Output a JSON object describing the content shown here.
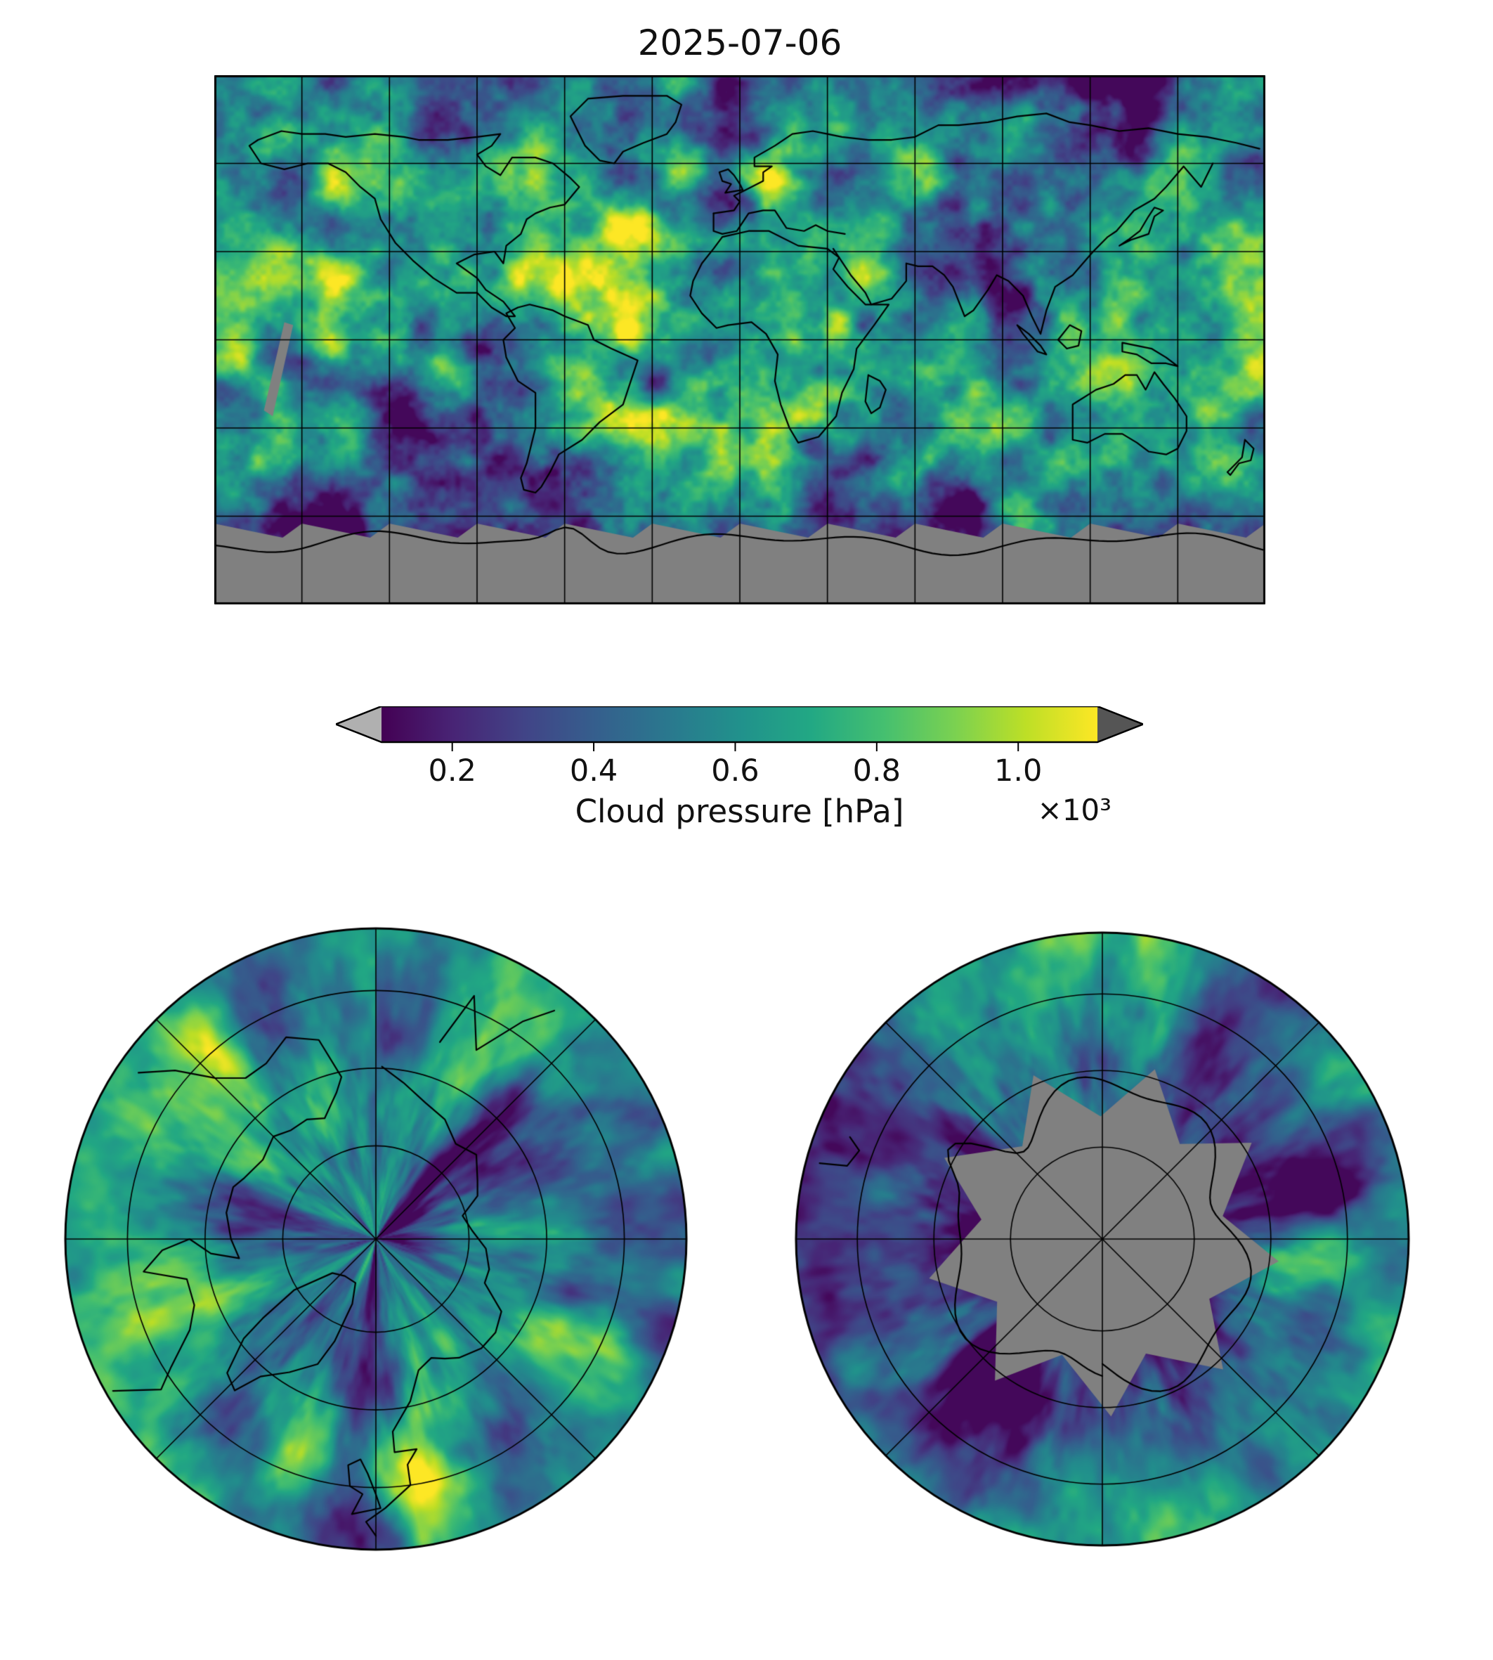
{
  "title": "2025-07-06",
  "colorbar": {
    "label": "Cloud pressure [hPa]",
    "multiplier": "×10³",
    "ticks": [
      "0.2",
      "0.4",
      "0.6",
      "0.8",
      "1.0"
    ],
    "tick_values": [
      0.2,
      0.4,
      0.6,
      0.8,
      1.0
    ],
    "vmin": 0.1,
    "vmax": 1.112,
    "under_color": "#b0b0b0",
    "over_color": "#555555",
    "colormap": "viridis",
    "colormap_stops": [
      "#440154",
      "#482475",
      "#414487",
      "#355f8d",
      "#2a788e",
      "#21918c",
      "#22a884",
      "#44bf70",
      "#7ad151",
      "#bddf26",
      "#fde725"
    ]
  },
  "map": {
    "nodata_color": "#808080",
    "coastline_color": "#000000",
    "gridline_color": "#000000",
    "background": "#ffffff"
  },
  "chart_data": {
    "type": "heatmap",
    "title": "2025-07-06",
    "variable": "Cloud pressure",
    "units": "hPa",
    "scale_factor": "×10³",
    "colormap": "viridis",
    "colorbar_ticks": [
      0.2,
      0.4,
      0.6,
      0.8,
      1.0
    ],
    "value_range": [
      0.1,
      1.112
    ],
    "no_data_color": "#808080",
    "panels": [
      {
        "name": "global-map",
        "projection": "equirectangular",
        "lon_range": [
          -180,
          180
        ],
        "lat_range": [
          -90,
          90
        ],
        "gridline_spacing_deg": 30,
        "no_data_region": "Antarctic band south of ~62°S shown gray with jagged swath edges"
      },
      {
        "name": "north-polar-map",
        "projection": "polar stereographic (North Pole)",
        "lat_limit": 45,
        "graticule": "circles + 45° spokes"
      },
      {
        "name": "south-polar-map",
        "projection": "polar stereographic (South Pole)",
        "lat_limit": -45,
        "graticule": "circles + 45° spokes",
        "no_data_region": "gray pinwheel of missing swaths over Antarctica"
      }
    ],
    "coarse_grid": {
      "description": "Approximate mean cloud pressure (×10³ hPa) on a 30° grid estimated from map colors; null = no data (gray).",
      "lat_centers": [
        75,
        45,
        15,
        -15,
        -45,
        -75
      ],
      "lon_centers": [
        -165,
        -135,
        -105,
        -75,
        -45,
        -15,
        15,
        45,
        75,
        105,
        135,
        165
      ],
      "values": [
        [
          0.62,
          0.58,
          0.52,
          0.5,
          0.62,
          0.72,
          0.66,
          0.58,
          0.54,
          0.6,
          0.5,
          0.58
        ],
        [
          0.55,
          0.72,
          0.62,
          0.76,
          0.82,
          0.86,
          0.78,
          0.6,
          0.5,
          0.56,
          0.46,
          0.52
        ],
        [
          0.85,
          0.9,
          0.72,
          0.76,
          0.95,
          0.9,
          0.86,
          0.8,
          0.62,
          0.46,
          0.74,
          0.8
        ],
        [
          0.9,
          0.86,
          0.8,
          0.62,
          0.9,
          0.96,
          0.86,
          0.9,
          0.8,
          0.7,
          0.85,
          0.88
        ],
        [
          0.6,
          0.56,
          0.5,
          0.46,
          0.62,
          0.7,
          0.66,
          0.6,
          0.56,
          0.6,
          0.52,
          0.56
        ],
        [
          null,
          null,
          null,
          null,
          null,
          null,
          null,
          null,
          null,
          null,
          null,
          null
        ]
      ]
    }
  }
}
